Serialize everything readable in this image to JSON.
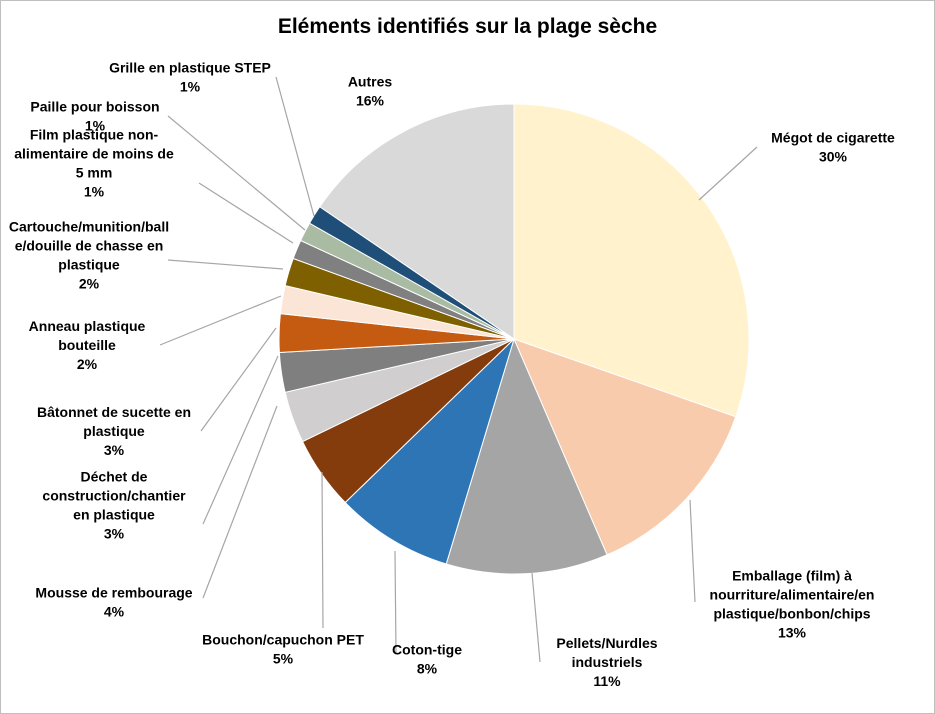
{
  "chart_data": {
    "type": "pie",
    "title": "Eléments identifiés sur la plage sèche",
    "slices": [
      {
        "label": "Mégot de cigarette",
        "pct_label": "30%",
        "value": 30,
        "color": "#FFF2CC"
      },
      {
        "label": "Emballage (film) à nourriture/alimentaire/en plastique/bonbon/chips",
        "pct_label": "13%",
        "value": 13,
        "color": "#F8CBAD"
      },
      {
        "label": "Pellets/Nurdles industriels",
        "pct_label": "11%",
        "value": 11,
        "color": "#A5A5A5"
      },
      {
        "label": "Coton-tige",
        "pct_label": "8%",
        "value": 8,
        "color": "#2E75B6"
      },
      {
        "label": "Bouchon/capuchon PET",
        "pct_label": "5%",
        "value": 5,
        "color": "#843C0C"
      },
      {
        "label": "Mousse de rembourage",
        "pct_label": "4%",
        "value": 3.5,
        "color": "#D0CECE"
      },
      {
        "label": "Déchet de construction/chantier en plastique",
        "pct_label": "3%",
        "value": 2.7,
        "color": "#7F7F7F"
      },
      {
        "label": "Bâtonnet de sucette en plastique",
        "pct_label": "3%",
        "value": 2.6,
        "color": "#C55A11"
      },
      {
        "label": "Anneau plastique bouteille",
        "pct_label": "2%",
        "value": 1.9,
        "color": "#FBE5D6"
      },
      {
        "label": "Cartouche/munition/balle/douille de chasse en plastique",
        "pct_label": "2%",
        "value": 1.9,
        "color": "#7F6000"
      },
      {
        "label": "Film plastique non-alimentaire de moins de 5 mm",
        "pct_label": "1%",
        "value": 1.3,
        "color": "#808080"
      },
      {
        "label": "Paille pour boisson",
        "pct_label": "1%",
        "value": 1.3,
        "color": "#A9BBA3"
      },
      {
        "label": "Grille en plastique STEP",
        "pct_label": "1%",
        "value": 1.3,
        "color": "#1F4E79"
      },
      {
        "label": "Autres",
        "pct_label": "16%",
        "value": 15.3,
        "color": "#D9D9D9"
      }
    ],
    "labels": [
      {
        "lines": [
          "Mégot de cigarette",
          "30%"
        ]
      },
      {
        "lines": [
          "Emballage (film) à",
          "nourriture/alimentaire/en",
          "plastique/bonbon/chips",
          "13%"
        ]
      },
      {
        "lines": [
          "Pellets/Nurdles",
          "industriels",
          "11%"
        ]
      },
      {
        "lines": [
          "Coton-tige",
          "8%"
        ]
      },
      {
        "lines": [
          "Bouchon/capuchon PET",
          "5%"
        ]
      },
      {
        "lines": [
          "Mousse de rembourage",
          "4%"
        ]
      },
      {
        "lines": [
          "Déchet de",
          "construction/chantier",
          "en plastique",
          "3%"
        ]
      },
      {
        "lines": [
          "Bâtonnet de sucette en",
          "plastique",
          "3%"
        ]
      },
      {
        "lines": [
          "Anneau plastique",
          "bouteille",
          "2%"
        ]
      },
      {
        "lines": [
          "Cartouche/munition/ball",
          "e/douille de chasse en",
          "plastique",
          "2%"
        ]
      },
      {
        "lines": [
          "Film plastique non-",
          "alimentaire de moins de",
          "5 mm",
          "1%"
        ]
      },
      {
        "lines": [
          "Paille pour boisson",
          "1%"
        ]
      },
      {
        "lines": [
          "Grille en plastique STEP",
          "1%"
        ]
      },
      {
        "lines": [
          "Autres",
          "16%"
        ]
      }
    ],
    "legend": "none"
  }
}
